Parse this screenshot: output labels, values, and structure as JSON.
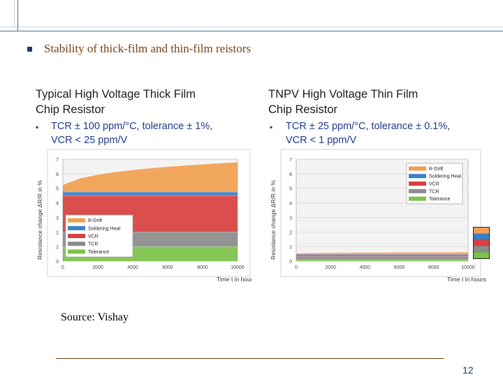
{
  "slide": {
    "heading": "Stability of thick-film and thin-film reistors",
    "source": "Source: Vishay",
    "page_number": "12"
  },
  "panels": [
    {
      "title_line1": "Typical High Voltage Thick Film",
      "title_line2": "Chip Resistor",
      "spec_line1": "TCR ± 100 ppm/°C, tolerance ± 1%,",
      "spec_line2": "VCR < 25 ppm/V"
    },
    {
      "title_line1": "TNPV High Voltage Thin Film",
      "title_line2": "Chip Resistor",
      "spec_line1": "TCR ± 25 ppm/°C, tolerance ± 0.1%,",
      "spec_line2": "VCR < 1 ppm/V"
    }
  ],
  "colors": {
    "tolerance": "#7cc24a",
    "tcr": "#8c8c8c",
    "vcr": "#d94040",
    "soldering_heat": "#3d7fc6",
    "r_drift": "#f0a050",
    "heading": "#7a3f10",
    "spec": "#1f3a8a"
  },
  "chart_data": [
    {
      "type": "area",
      "stacked": true,
      "xlabel": "Time t in hours",
      "ylabel": "Resistance change ΔR/R in %",
      "xlim": [
        0,
        10000
      ],
      "ylim": [
        0,
        7
      ],
      "x_ticks": [
        "0",
        "2000",
        "4000",
        "6000",
        "8000",
        "10000"
      ],
      "y_ticks": [
        "0",
        "1",
        "2",
        "3",
        "4",
        "5",
        "6",
        "7"
      ],
      "legend_position": "bottom-left",
      "x": [
        0,
        1000,
        2000,
        3000,
        4000,
        5000,
        6000,
        7000,
        8000,
        9000,
        10000
      ],
      "series": [
        {
          "name": "Tolerance",
          "values": [
            1,
            1,
            1,
            1,
            1,
            1,
            1,
            1,
            1,
            1,
            1
          ]
        },
        {
          "name": "TCR",
          "values": [
            1,
            1,
            1,
            1,
            1,
            1,
            1,
            1,
            1,
            1,
            1
          ]
        },
        {
          "name": "VCR",
          "values": [
            2.5,
            2.5,
            2.5,
            2.5,
            2.5,
            2.5,
            2.5,
            2.5,
            2.5,
            2.5,
            2.5
          ]
        },
        {
          "name": "Soldering Heat",
          "values": [
            0.25,
            0.25,
            0.25,
            0.25,
            0.25,
            0.25,
            0.25,
            0.25,
            0.25,
            0.25,
            0.25
          ]
        },
        {
          "name": "R-Drift",
          "values": [
            0.5,
            0.95,
            1.2,
            1.38,
            1.52,
            1.64,
            1.74,
            1.83,
            1.91,
            1.98,
            2.05
          ]
        }
      ]
    },
    {
      "type": "area",
      "stacked": true,
      "xlabel": "Time t in hours",
      "ylabel": "Resistance change ΔR/R in %",
      "xlim": [
        0,
        10000
      ],
      "ylim": [
        0,
        7
      ],
      "x_ticks": [
        "0",
        "2000",
        "4000",
        "6000",
        "8000",
        "10000"
      ],
      "y_ticks": [
        "0",
        "1",
        "2",
        "3",
        "4",
        "5",
        "6",
        "7"
      ],
      "legend_position": "top-right",
      "x": [
        0,
        1000,
        2000,
        3000,
        4000,
        5000,
        6000,
        7000,
        8000,
        9000,
        10000
      ],
      "series": [
        {
          "name": "Tolerance",
          "values": [
            0.1,
            0.1,
            0.1,
            0.1,
            0.1,
            0.1,
            0.1,
            0.1,
            0.1,
            0.1,
            0.1
          ]
        },
        {
          "name": "TCR",
          "values": [
            0.25,
            0.25,
            0.25,
            0.25,
            0.25,
            0.25,
            0.25,
            0.25,
            0.25,
            0.25,
            0.25
          ]
        },
        {
          "name": "VCR",
          "values": [
            0.1,
            0.1,
            0.1,
            0.1,
            0.1,
            0.1,
            0.1,
            0.1,
            0.1,
            0.1,
            0.1
          ]
        },
        {
          "name": "Soldering Heat",
          "values": [
            0.05,
            0.05,
            0.05,
            0.05,
            0.05,
            0.05,
            0.05,
            0.05,
            0.05,
            0.05,
            0.05
          ]
        },
        {
          "name": "R-Drift",
          "values": [
            0.05,
            0.07,
            0.08,
            0.09,
            0.1,
            0.1,
            0.11,
            0.11,
            0.12,
            0.12,
            0.13
          ]
        }
      ]
    }
  ]
}
